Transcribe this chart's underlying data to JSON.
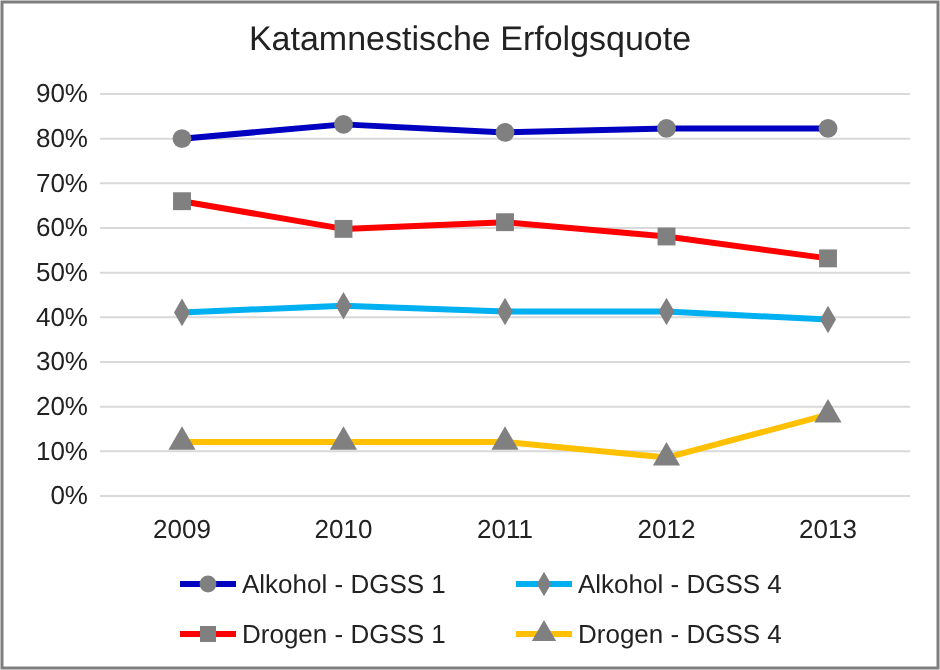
{
  "chart_data": {
    "type": "line",
    "title": "Katamnestische Erfolgsquote",
    "categories": [
      "2009",
      "2010",
      "2011",
      "2012",
      "2013"
    ],
    "ylim": [
      0,
      90
    ],
    "yticks": [
      {
        "value": 0,
        "label": "0%"
      },
      {
        "value": 10,
        "label": "10%"
      },
      {
        "value": 20,
        "label": "20%"
      },
      {
        "value": 30,
        "label": "30%"
      },
      {
        "value": 40,
        "label": "40%"
      },
      {
        "value": 50,
        "label": "50%"
      },
      {
        "value": 60,
        "label": "60%"
      },
      {
        "value": 70,
        "label": "70%"
      },
      {
        "value": 80,
        "label": "80%"
      },
      {
        "value": 90,
        "label": "90%"
      }
    ],
    "grid": "y",
    "legend": "bottom",
    "series": [
      {
        "name": "Alkohol - DGSS 1",
        "color": "#0000c0",
        "marker": "circle",
        "values": [
          80.0,
          83.2,
          81.4,
          82.3,
          82.3
        ]
      },
      {
        "name": "Alkohol - DGSS 4",
        "color": "#00b0f0",
        "marker": "diamond",
        "values": [
          41.1,
          42.6,
          41.3,
          41.3,
          39.5
        ]
      },
      {
        "name": "Drogen - DGSS 1",
        "color": "#ff0000",
        "marker": "square",
        "values": [
          66.0,
          59.8,
          61.3,
          58.1,
          53.2
        ]
      },
      {
        "name": "Drogen - DGSS 4",
        "color": "#ffc000",
        "marker": "triangle",
        "values": [
          12.1,
          12.1,
          12.1,
          8.6,
          18.2
        ]
      }
    ]
  }
}
